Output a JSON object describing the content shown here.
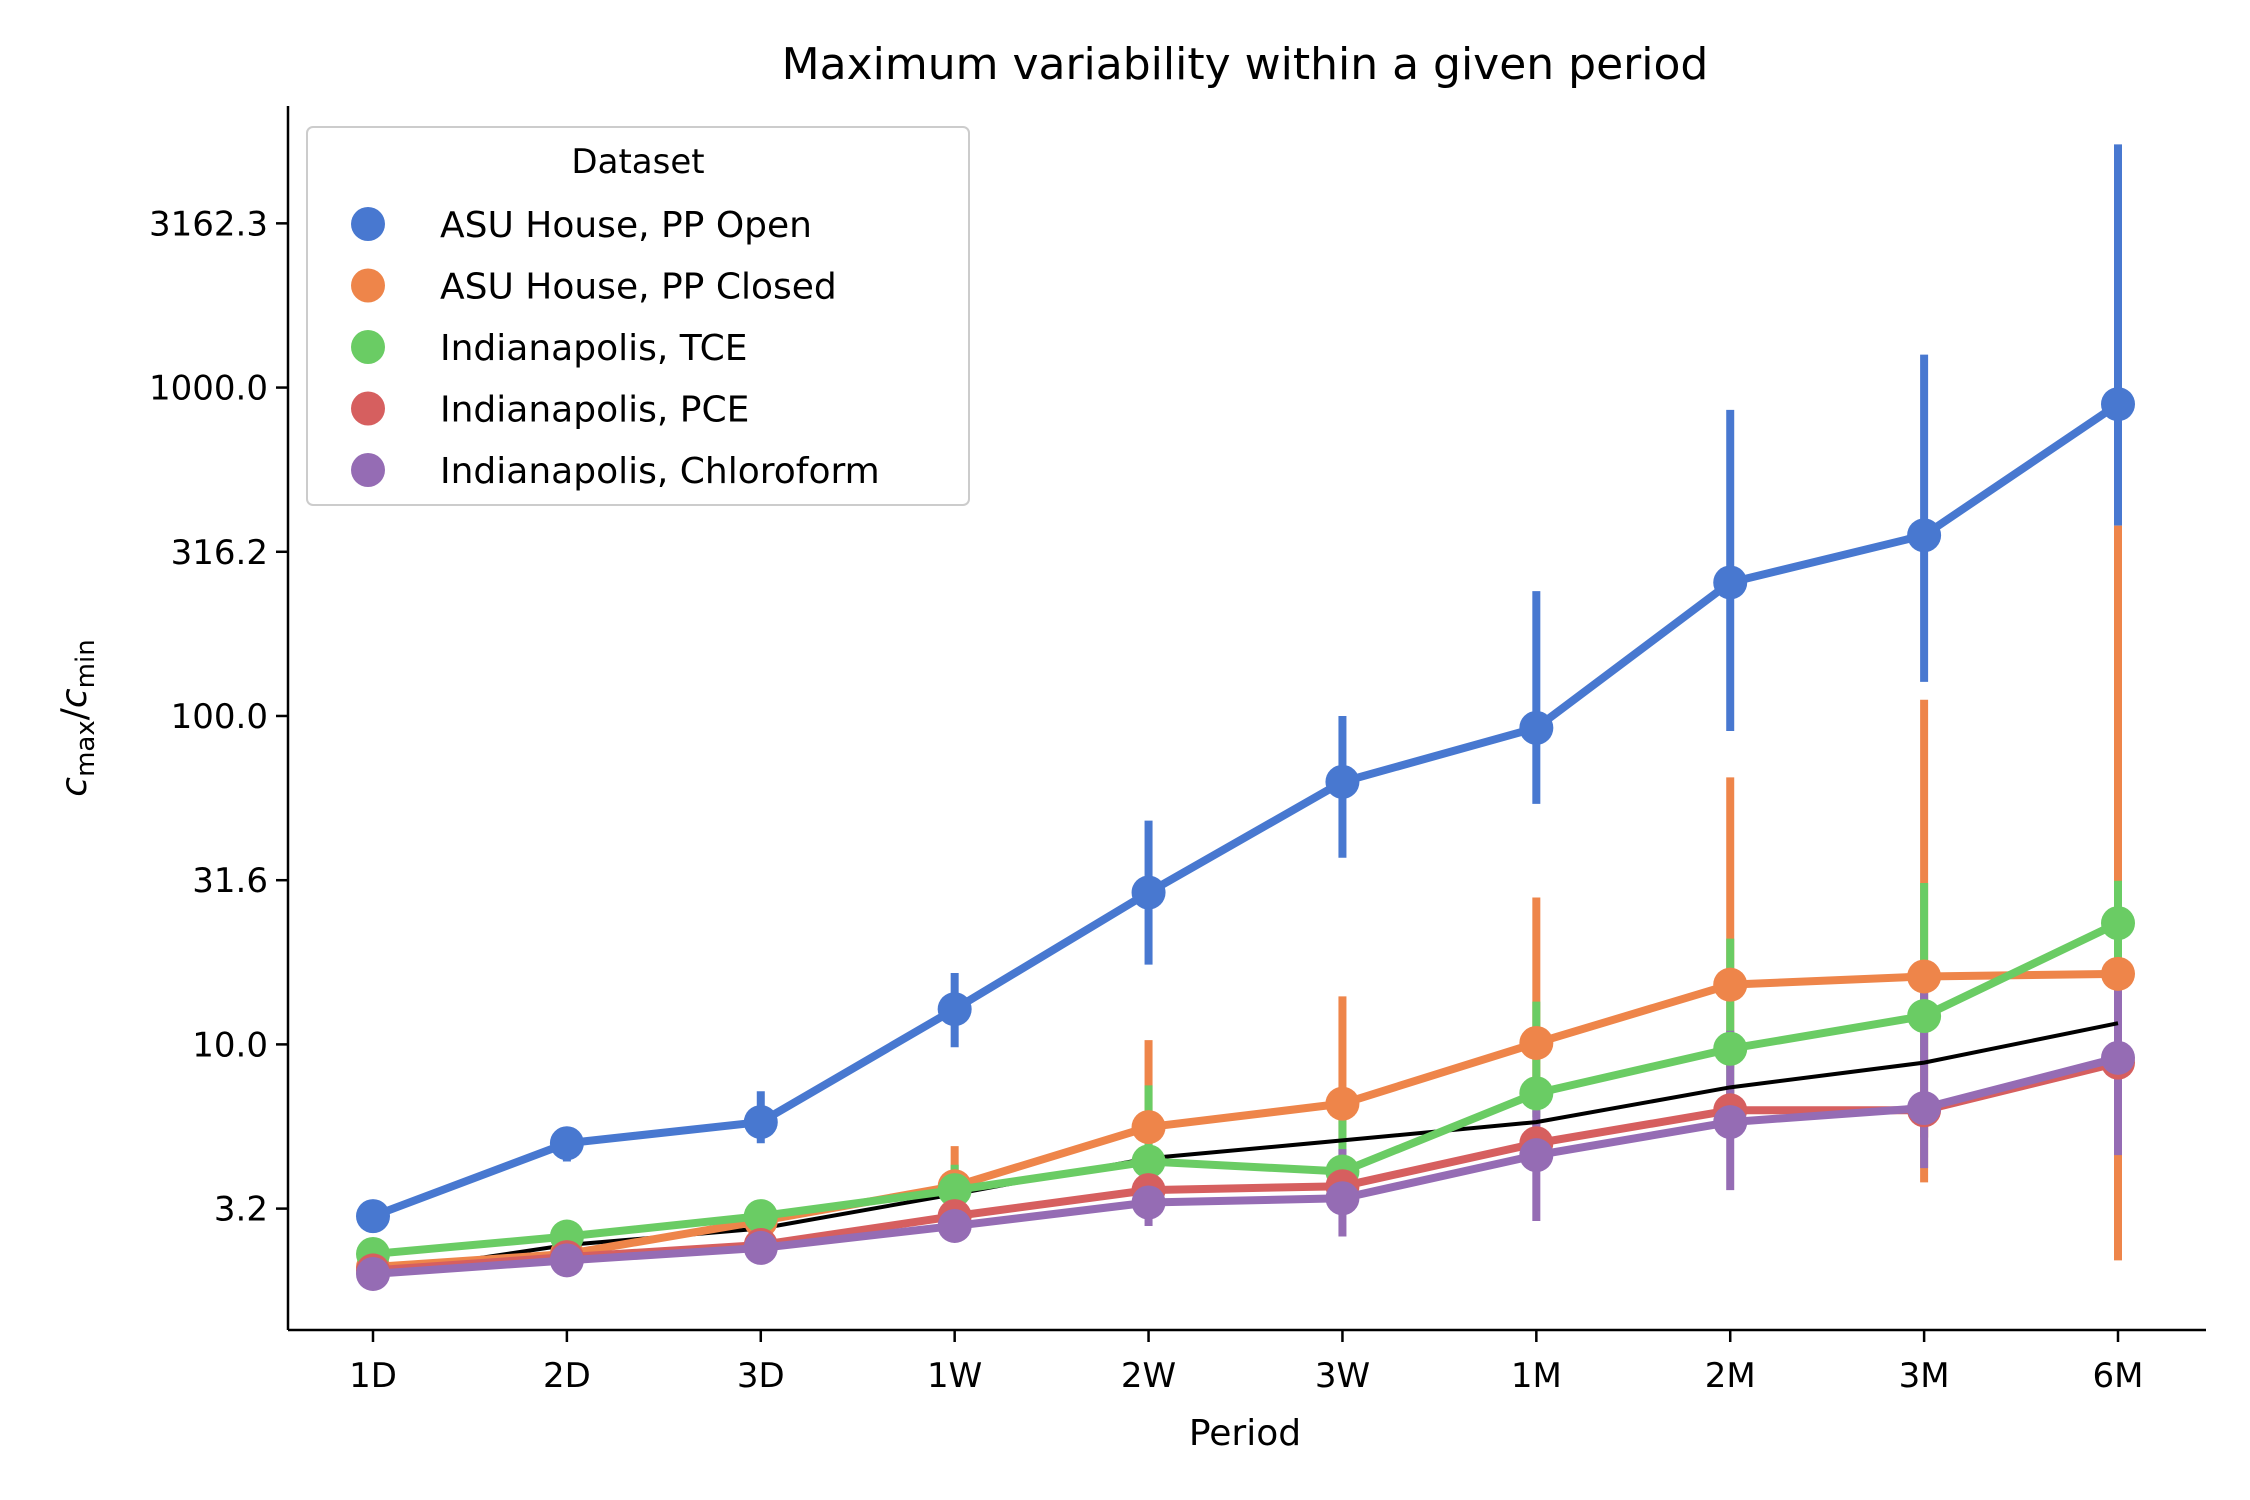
{
  "chart_data": {
    "type": "line",
    "title": "Maximum variability within a given period",
    "xlabel": "Period",
    "ylabel": {
      "main": "c",
      "sub1": "max",
      "slash": "/",
      "main2": "c",
      "sub2": "min"
    },
    "y_scale": "log",
    "ylim": [
      1.35,
      7200
    ],
    "categories": [
      "1D",
      "2D",
      "3D",
      "1W",
      "2W",
      "3W",
      "1M",
      "2M",
      "3M",
      "6M"
    ],
    "y_ticks": [
      {
        "value": 3.162,
        "label": "3.2"
      },
      {
        "value": 10,
        "label": "10.0"
      },
      {
        "value": 31.62,
        "label": "31.6"
      },
      {
        "value": 100,
        "label": "100.0"
      },
      {
        "value": 316.2,
        "label": "316.2"
      },
      {
        "value": 1000,
        "label": "1000.0"
      },
      {
        "value": 3162.3,
        "label": "3162.3"
      }
    ],
    "legend": {
      "title": "Dataset",
      "placement": "top-left"
    },
    "series": [
      {
        "name": "ASU House, PP Open",
        "color": "#4878d0",
        "values": [
          3.0,
          5.0,
          5.8,
          12.8,
          29.0,
          63.0,
          92.0,
          255.0,
          355.0,
          890.0
        ],
        "err_low": [
          null,
          4.4,
          5.0,
          9.8,
          17.5,
          37.0,
          54.0,
          90.0,
          127.0,
          380.0
        ],
        "err_high": [
          null,
          5.6,
          7.2,
          16.5,
          48.0,
          100.0,
          240.0,
          855.0,
          1260.0,
          5500.0
        ]
      },
      {
        "name": "ASU House, PP Closed",
        "color": "#ee854a",
        "values": [
          2.1,
          2.3,
          2.9,
          3.7,
          5.6,
          6.6,
          10.1,
          15.2,
          16.1,
          16.4
        ],
        "err_low": [
          null,
          2.2,
          2.7,
          3.3,
          4.5,
          5.0,
          6.8,
          8.5,
          3.8,
          2.2
        ],
        "err_high": [
          null,
          2.5,
          3.2,
          4.9,
          10.3,
          14.0,
          28.0,
          65.0,
          112.0,
          380.0
        ]
      },
      {
        "name": "Indianapolis, TCE",
        "color": "#6acc64",
        "values": [
          2.3,
          2.6,
          3.0,
          3.6,
          4.4,
          4.1,
          7.1,
          9.7,
          12.2,
          23.4
        ],
        "err_low": [
          null,
          2.5,
          2.8,
          3.4,
          4.0,
          3.8,
          6.0,
          7.0,
          9.0,
          16.5
        ],
        "err_high": [
          null,
          2.8,
          3.2,
          4.3,
          7.5,
          6.5,
          13.5,
          21.0,
          31.0,
          31.5
        ]
      },
      {
        "name": "Indianapolis, PCE",
        "color": "#d65f5f",
        "values": [
          2.05,
          2.25,
          2.45,
          3.0,
          3.6,
          3.7,
          5.0,
          6.3,
          6.3,
          8.8
        ],
        "err_low": [
          null,
          2.15,
          2.3,
          2.7,
          3.2,
          3.2,
          4.2,
          5.3,
          5.2,
          6.4
        ],
        "err_high": [
          null,
          2.35,
          2.6,
          3.3,
          4.0,
          4.2,
          5.8,
          7.3,
          7.2,
          12.0
        ]
      },
      {
        "name": "Indianapolis, Chloroform",
        "color": "#956cb4",
        "values": [
          2.0,
          2.2,
          2.4,
          2.8,
          3.3,
          3.4,
          4.6,
          5.8,
          6.4,
          9.1
        ],
        "err_low": [
          null,
          2.1,
          2.25,
          2.5,
          2.8,
          2.6,
          2.9,
          3.6,
          4.2,
          4.6
        ],
        "err_high": [
          null,
          2.3,
          2.55,
          3.1,
          4.6,
          4.8,
          6.3,
          11.0,
          17.0,
          18.0
        ]
      }
    ],
    "reference_line": {
      "color": "#000000",
      "values": [
        2.0,
        2.45,
        2.75,
        3.5,
        4.5,
        5.1,
        5.8,
        7.4,
        8.8,
        11.6
      ]
    }
  }
}
